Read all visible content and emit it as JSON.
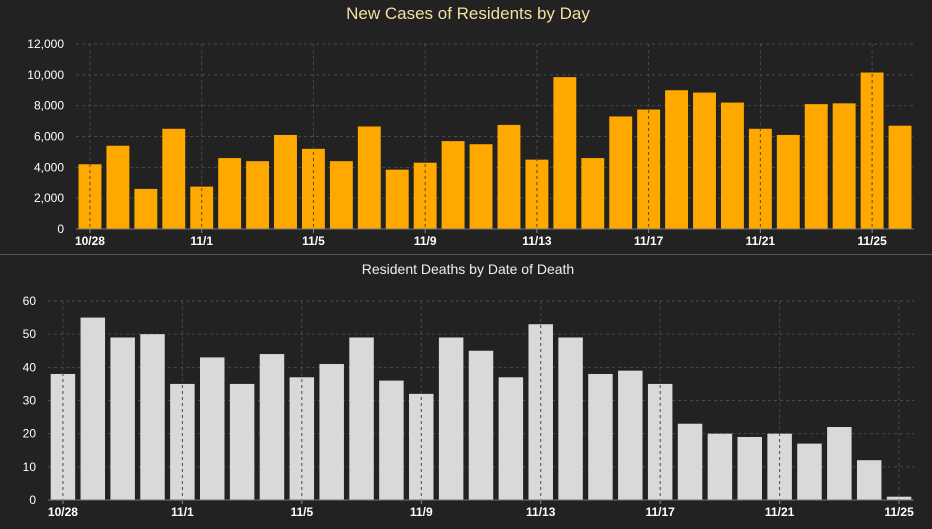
{
  "chart_data": [
    {
      "type": "bar",
      "title": "New Cases of Residents by Day",
      "xlabel": "",
      "ylabel": "",
      "ylim": [
        0,
        12000
      ],
      "yticks": [
        "0",
        "2,000",
        "4,000",
        "6,000",
        "8,000",
        "10,000",
        "12,000"
      ],
      "categories": [
        "10/28",
        "10/29",
        "10/30",
        "10/31",
        "11/1",
        "11/2",
        "11/3",
        "11/4",
        "11/5",
        "11/6",
        "11/7",
        "11/8",
        "11/9",
        "11/10",
        "11/11",
        "11/12",
        "11/13",
        "11/14",
        "11/15",
        "11/16",
        "11/17",
        "11/18",
        "11/19",
        "11/20",
        "11/21",
        "11/22",
        "11/23",
        "11/24",
        "11/25",
        "11/26"
      ],
      "x_tick_labels": [
        "10/28",
        "11/1",
        "11/5",
        "11/9",
        "11/13",
        "11/17",
        "11/21",
        "11/25"
      ],
      "values": [
        4200,
        5400,
        2600,
        6500,
        2750,
        4600,
        4400,
        6100,
        5200,
        4400,
        6650,
        3850,
        4300,
        5700,
        5500,
        6750,
        4500,
        9850,
        4600,
        7300,
        7750,
        9000,
        8850,
        8200,
        6500,
        6100,
        8100,
        8150,
        10150,
        6700
      ],
      "color": "#FFA800",
      "grid": true
    },
    {
      "type": "bar",
      "title": "Resident Deaths by Date of Death",
      "xlabel": "",
      "ylabel": "",
      "ylim": [
        0,
        60
      ],
      "yticks": [
        "0",
        "10",
        "20",
        "30",
        "40",
        "50",
        "60"
      ],
      "categories": [
        "10/28",
        "10/29",
        "10/30",
        "10/31",
        "11/1",
        "11/2",
        "11/3",
        "11/4",
        "11/5",
        "11/6",
        "11/7",
        "11/8",
        "11/9",
        "11/10",
        "11/11",
        "11/12",
        "11/13",
        "11/14",
        "11/15",
        "11/16",
        "11/17",
        "11/18",
        "11/19",
        "11/20",
        "11/21",
        "11/22",
        "11/23",
        "11/24",
        "11/25"
      ],
      "x_tick_labels": [
        "10/28",
        "11/1",
        "11/5",
        "11/9",
        "11/13",
        "11/17",
        "11/21",
        "11/25"
      ],
      "values": [
        38,
        55,
        49,
        50,
        35,
        43,
        35,
        44,
        37,
        41,
        49,
        36,
        32,
        49,
        45,
        37,
        53,
        49,
        38,
        39,
        35,
        23,
        20,
        19,
        20,
        17,
        22,
        12,
        1
      ],
      "color": "#D9D9D9",
      "grid": true
    }
  ]
}
